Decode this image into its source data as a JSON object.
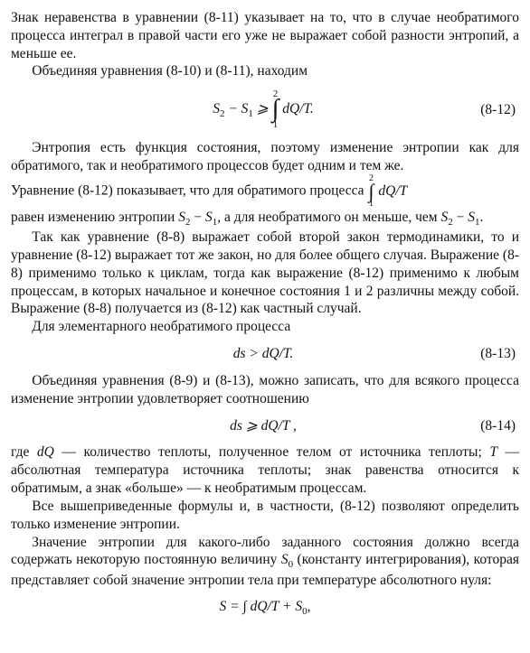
{
  "p1": "Знак неравенства в уравнении (8-11) указывает на то, что в случае необратимого процесса интеграл в правой части его уже не выражает собой разности энтропий, а меньше ее.",
  "p2": "Объединяя уравнения (8-10) и (8-11), находим",
  "eq1_lhs_a": "S",
  "eq1_lhs_a_sub": "2",
  "eq1_minus": " − ",
  "eq1_lhs_b": "S",
  "eq1_lhs_b_sub": "1",
  "eq1_rel": " ⩾ ",
  "eq1_int_upper": "2",
  "eq1_int_lower": "1",
  "eq1_rhs": " dQ/T.",
  "eq1_num": "(8-12)",
  "p3a": "Энтропия есть функция состояния, поэтому изменение энтропии как для обратимого, так и необратимого процессов будет одним и тем же.",
  "p3b_before": "Уравнение (8-12) показывает, что для обратимого процесса ",
  "p3b_int_upper": "2",
  "p3b_int_lower": "1",
  "p3b_int_body": " dQ/T",
  "p3c_1": "равен изменению энтропии ",
  "p3c_s2": "S",
  "p3c_s2sub": "2",
  "p3c_m": " − ",
  "p3c_s1": "S",
  "p3c_s1sub": "1",
  "p3c_2": ", а для необратимого он меньше, чем ",
  "p3c_s2b": "S",
  "p3c_s1b": "S",
  "p3c_end": ".",
  "p4": "Так как уравнение (8-8) выражает собой второй закон термодинамики, то и уравнение (8-12) выражает тот же закон, но для более общего случая. Выражение (8-8) применимо только к циклам, тогда как выражение (8-12) применимо к любым процессам, в которых начальное и конечное состояния 1 и 2 различны между собой. Выражение (8-8) получается из (8-12) как частный случай.",
  "p5": "Для элементарного необратимого процесса",
  "eq2_body": "ds  >  dQ/T.",
  "eq2_num": "(8-13)",
  "p6": "Объединяя уравнения (8-9) и (8-13), можно записать, что для всякого процесса изменение энтропии удовлетворяет соотношению",
  "eq3_body": "ds  ⩾  dQ/T ,",
  "eq3_num": "(8-14)",
  "p7_a": "где ",
  "p7_b": "dQ",
  "p7_c": " — количество теплоты, полученное телом от источника теплоты; ",
  "p7_d": "T",
  "p7_e": " — абсолютная температура источника теплоты; знак равенства относится к обратимым, а знак «больше» — к необратимым процессам.",
  "p8": "Все вышеприведенные формулы и, в частности, (8-12) позволяют определить только изменение энтропии.",
  "p9_a": "Значение энтропии для какого-либо заданного состояния должно всегда содержать некоторую постоянную величину ",
  "p9_s0": "S",
  "p9_s0sub": "0",
  "p9_b": " (константу интегрирования), которая представляет собой значение энтропии тела при температуре абсолютного нуля:",
  "eq4_lhs": "S = ",
  "eq4_int_body": "∫ dQ/T + S",
  "eq4_sub": "0",
  "eq4_end": ","
}
